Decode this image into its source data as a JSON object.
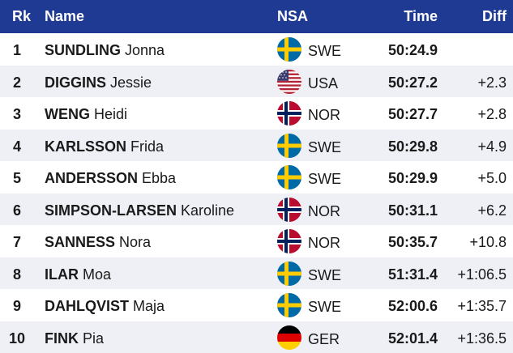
{
  "header": {
    "rank": "Rk",
    "name": "Name",
    "nsa": "NSA",
    "time": "Time",
    "diff": "Diff"
  },
  "rows": [
    {
      "rank": "1",
      "last": "SUNDLING",
      "first": "Jonna",
      "flag": "sweden-flag-icon",
      "nsa": "SWE",
      "time": "50:24.9",
      "diff": ""
    },
    {
      "rank": "2",
      "last": "DIGGINS",
      "first": "Jessie",
      "flag": "usa-flag-icon",
      "nsa": "USA",
      "time": "50:27.2",
      "diff": "+2.3"
    },
    {
      "rank": "3",
      "last": "WENG",
      "first": "Heidi",
      "flag": "norway-flag-icon",
      "nsa": "NOR",
      "time": "50:27.7",
      "diff": "+2.8"
    },
    {
      "rank": "4",
      "last": "KARLSSON",
      "first": "Frida",
      "flag": "sweden-flag-icon",
      "nsa": "SWE",
      "time": "50:29.8",
      "diff": "+4.9"
    },
    {
      "rank": "5",
      "last": "ANDERSSON",
      "first": "Ebba",
      "flag": "sweden-flag-icon",
      "nsa": "SWE",
      "time": "50:29.9",
      "diff": "+5.0"
    },
    {
      "rank": "6",
      "last": "SIMPSON-LARSEN",
      "first": "Karoline",
      "flag": "norway-flag-icon",
      "nsa": "NOR",
      "time": "50:31.1",
      "diff": "+6.2"
    },
    {
      "rank": "7",
      "last": "SANNESS",
      "first": "Nora",
      "flag": "norway-flag-icon",
      "nsa": "NOR",
      "time": "50:35.7",
      "diff": "+10.8"
    },
    {
      "rank": "8",
      "last": "ILAR",
      "first": "Moa",
      "flag": "sweden-flag-icon",
      "nsa": "SWE",
      "time": "51:31.4",
      "diff": "+1:06.5"
    },
    {
      "rank": "9",
      "last": "DAHLQVIST",
      "first": "Maja",
      "flag": "sweden-flag-icon",
      "nsa": "SWE",
      "time": "52:00.6",
      "diff": "+1:35.7"
    },
    {
      "rank": "10",
      "last": "FINK",
      "first": "Pia",
      "flag": "germany-flag-icon",
      "nsa": "GER",
      "time": "52:01.4",
      "diff": "+1:36.5"
    }
  ],
  "colors": {
    "header_bg": "#1f3a93",
    "row_alt_bg": "#eef0f6"
  }
}
